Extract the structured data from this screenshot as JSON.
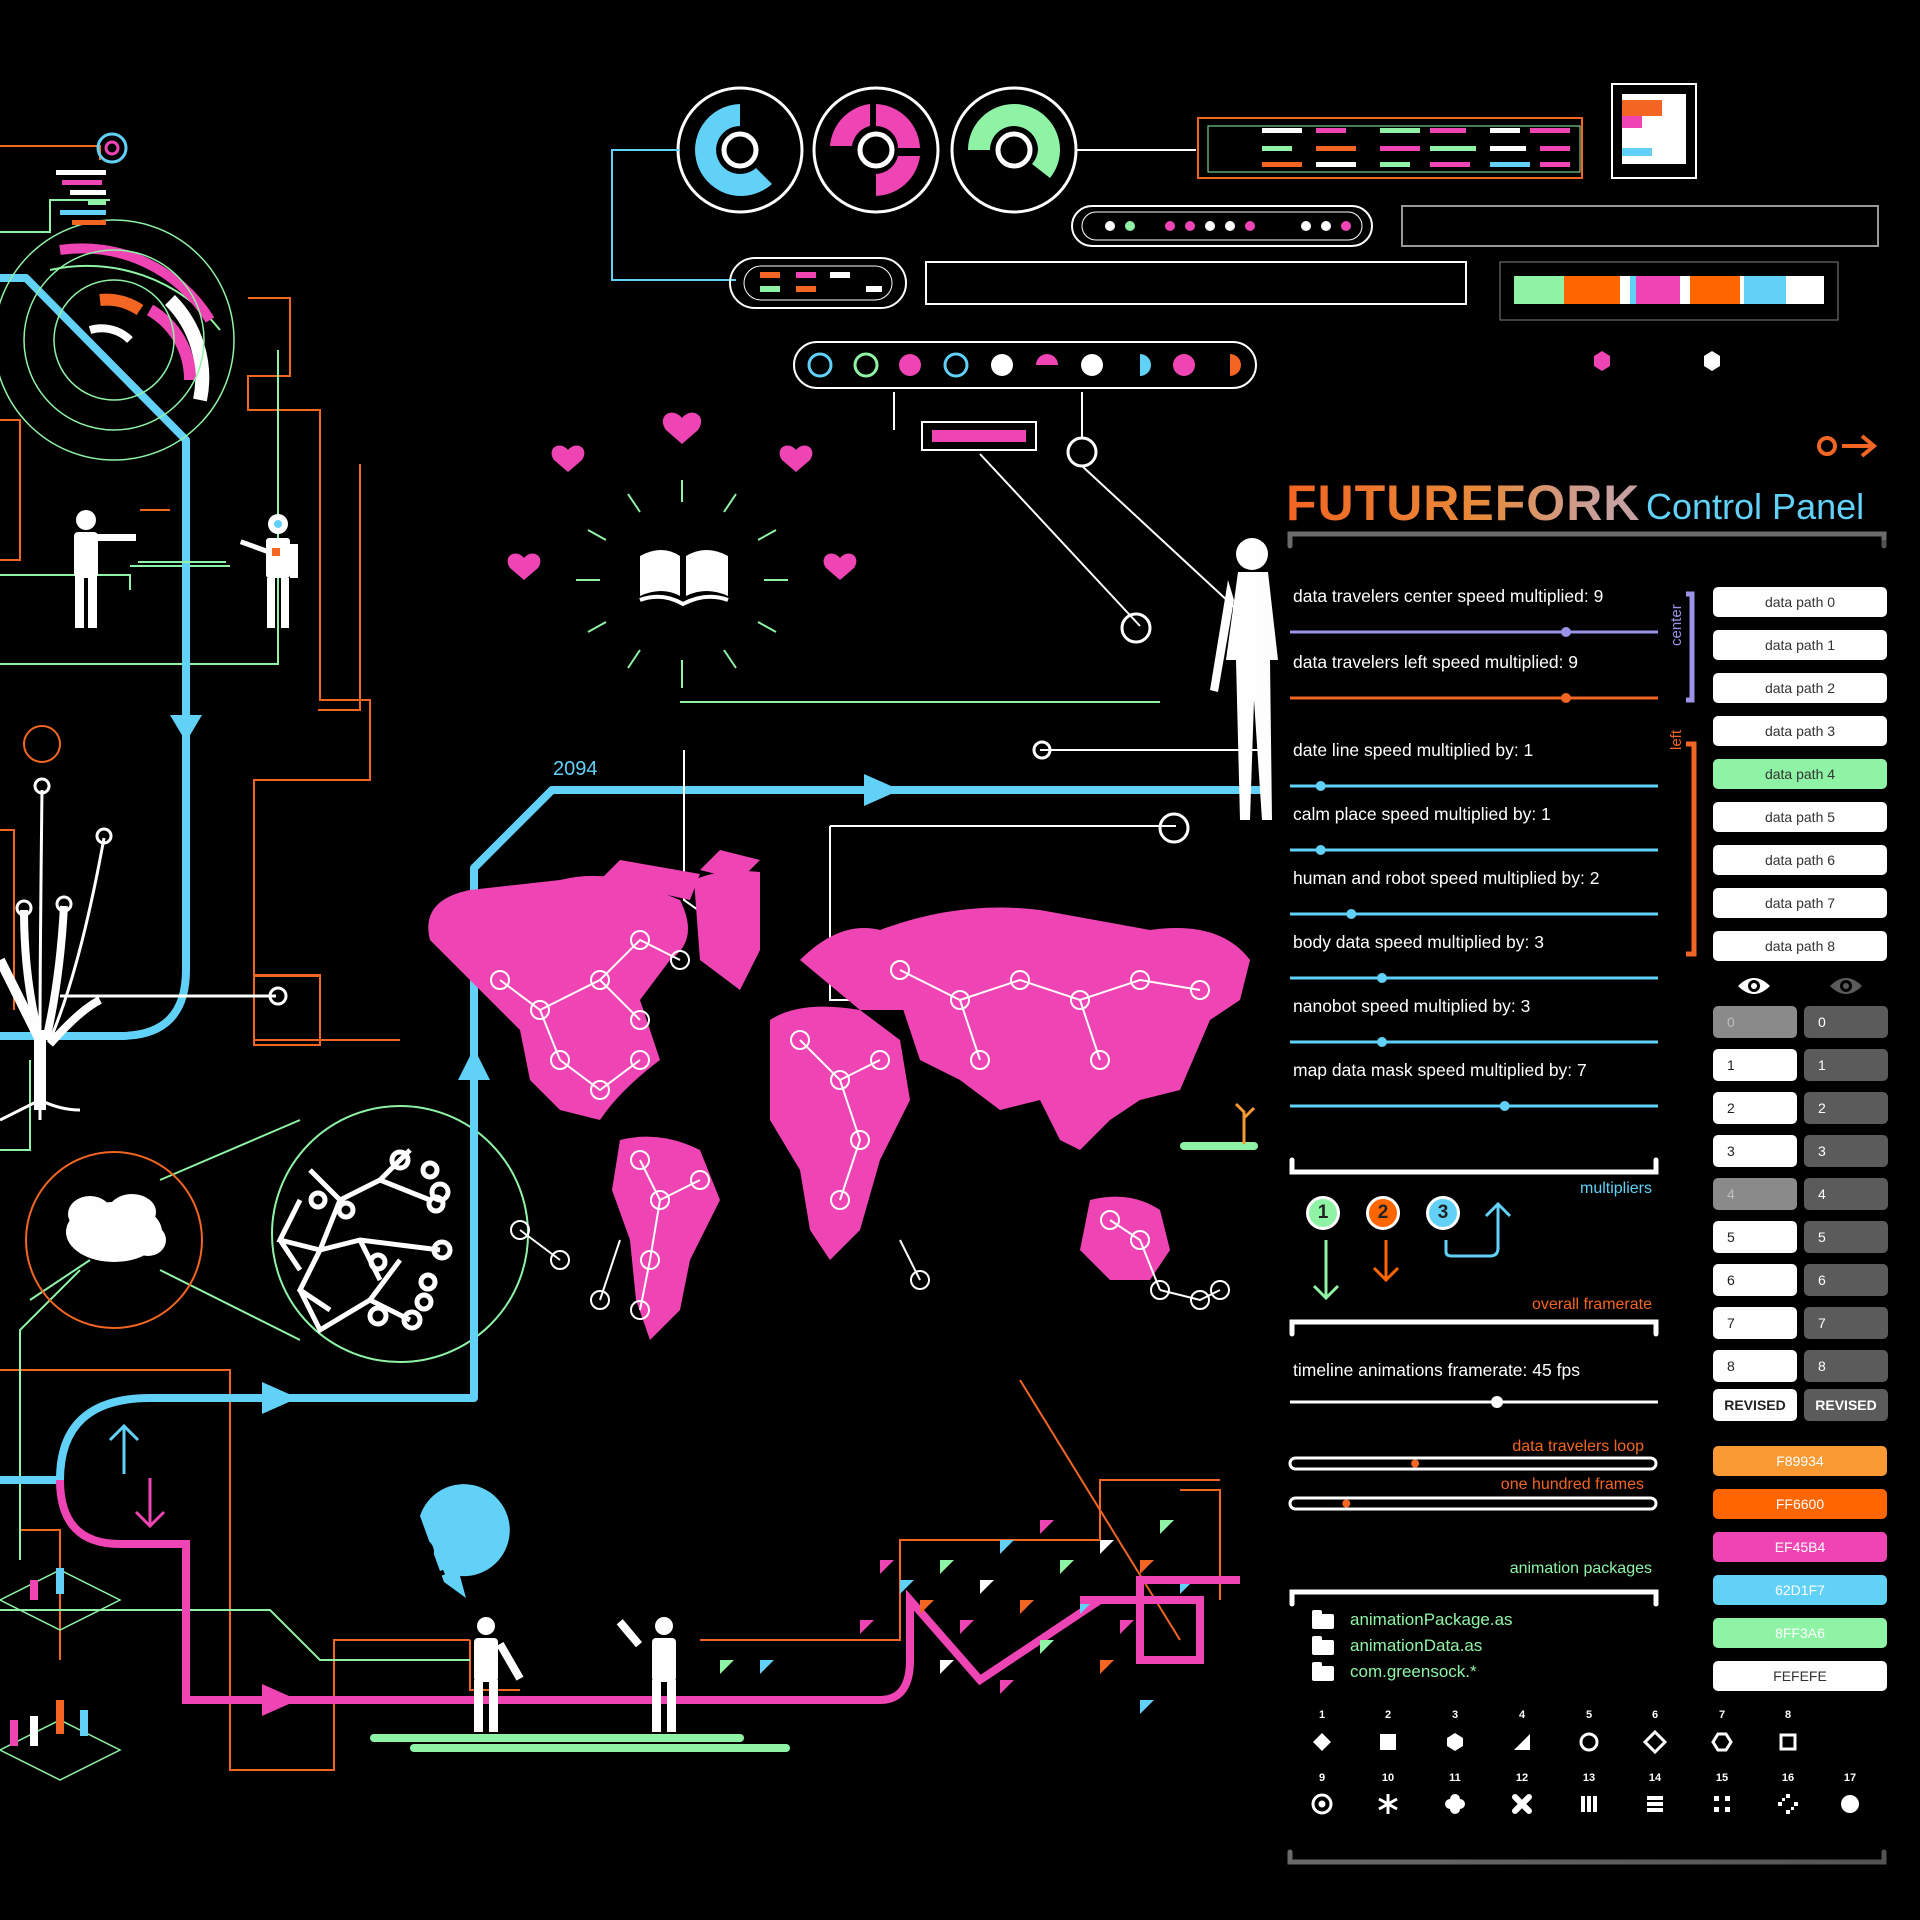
{
  "header": {
    "brand": "FUTUREFORK",
    "subtitle": "Control Panel"
  },
  "timeline": {
    "year_label": "2094"
  },
  "speed_sliders": [
    {
      "label": "data travelers center speed multiplied: 9",
      "value": 9,
      "color": "#9a93e8"
    },
    {
      "label": "data travelers  left speed multiplied: 9",
      "value": 9,
      "color": "#f26522"
    },
    {
      "label": "date line speed multiplied by: 1",
      "value": 1,
      "color": "#62d1f7"
    },
    {
      "label": "calm place speed multiplied by: 1",
      "value": 1,
      "color": "#62d1f7"
    },
    {
      "label": "human and robot speed multiplied by: 2",
      "value": 2,
      "color": "#62d1f7"
    },
    {
      "label": "body data speed multiplied by: 3",
      "value": 3,
      "color": "#62d1f7"
    },
    {
      "label": "nanobot speed multiplied by: 3",
      "value": 3,
      "color": "#62d1f7"
    },
    {
      "label": "map data mask speed multiplied by: 7",
      "value": 7,
      "color": "#62d1f7"
    }
  ],
  "groups": {
    "center_label": "center",
    "left_label": "left"
  },
  "data_paths": [
    {
      "label": "data path 0",
      "active": false
    },
    {
      "label": "data path 1",
      "active": false
    },
    {
      "label": "data path 2",
      "active": false
    },
    {
      "label": "data path 3",
      "active": false
    },
    {
      "label": "data path 4",
      "active": true
    },
    {
      "label": "data path 5",
      "active": false
    },
    {
      "label": "data path 6",
      "active": false
    },
    {
      "label": "data path 7",
      "active": false
    },
    {
      "label": "data path 8",
      "active": false
    }
  ],
  "visibility": {
    "eye_on_icon": "eye-icon",
    "eye_off_icon": "eye-icon"
  },
  "number_buttons": {
    "left": [
      "0",
      "1",
      "2",
      "3",
      "4",
      "5",
      "6",
      "7",
      "8"
    ],
    "right": [
      "0",
      "1",
      "2",
      "3",
      "4",
      "5",
      "6",
      "7",
      "8"
    ],
    "left_dimmed": [
      "0",
      "4"
    ],
    "revised_left": "REVISED",
    "revised_right": "REVISED"
  },
  "multipliers": {
    "label": "multipliers",
    "buttons": [
      {
        "label": "1",
        "color": "#8ff3a6"
      },
      {
        "label": "2",
        "color": "#ff6600"
      },
      {
        "label": "3",
        "color": "#62d1f7"
      }
    ]
  },
  "framerate": {
    "section_label": "overall framerate",
    "slider_label": "timeline animations framerate: 45 fps",
    "value_fps": 45
  },
  "loops": {
    "travelers_loop_label": "data travelers loop",
    "travelers_loop_value": 0.34,
    "frames_label": "one hundred frames",
    "frames_value": 0.15
  },
  "palette": [
    {
      "label": "F89934",
      "color": "#F89934"
    },
    {
      "label": "FF6600",
      "color": "#FF6600"
    },
    {
      "label": "EF45B4",
      "color": "#EF45B4"
    },
    {
      "label": "62D1F7",
      "color": "#62D1F7"
    },
    {
      "label": "8FF3A6",
      "color": "#8FF3A6"
    },
    {
      "label": "FEFEFE",
      "color": "#FEFEFE"
    }
  ],
  "packages": {
    "section_label": "animation packages",
    "files": [
      "animationPackage.as",
      "animationData.as",
      "com.greensock.*"
    ]
  },
  "shapes": {
    "numbers": [
      "1",
      "2",
      "3",
      "4",
      "5",
      "6",
      "7",
      "8",
      "9",
      "10",
      "11",
      "12",
      "13",
      "14",
      "15",
      "16",
      "17"
    ],
    "icons": [
      "diamond-icon",
      "square-icon",
      "hexagon-icon",
      "triangle-icon",
      "ring-icon",
      "diamond-outline-icon",
      "hexagon-outline-icon",
      "square-outline-icon",
      "target-icon",
      "asterisk-icon",
      "cross-icon",
      "x-icon",
      "bars-vertical-icon",
      "bars-horizontal-icon",
      "dots-icon",
      "sparkle-icon",
      "circle-icon"
    ]
  },
  "colors": {
    "orange": "#f26522",
    "blue": "#62d1f7",
    "pink": "#ef45b4",
    "green": "#8ff3a6",
    "white": "#fefefe"
  }
}
